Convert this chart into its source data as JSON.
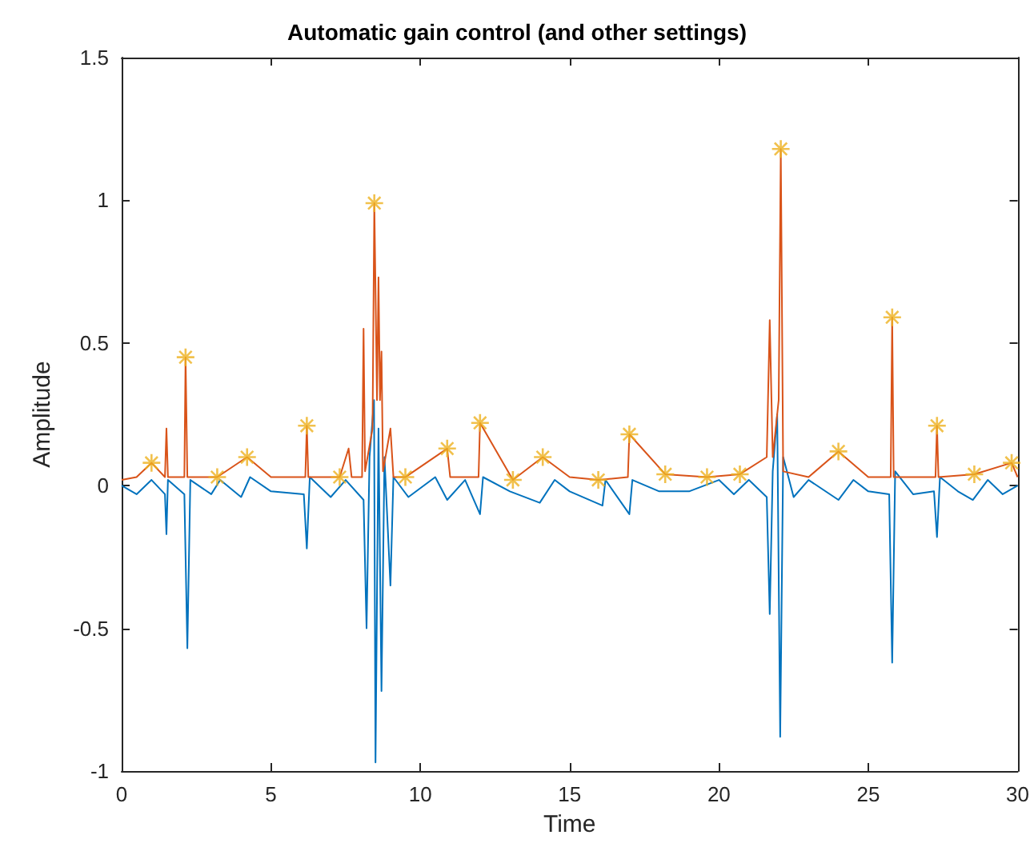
{
  "chart_data": {
    "type": "line",
    "title": "Automatic gain control (and other settings)",
    "xlabel": "Time",
    "ylabel": "Amplitude",
    "xlim": [
      0,
      30
    ],
    "xticks": [
      0,
      5,
      10,
      15,
      20,
      25,
      30
    ],
    "ylim": [
      -1,
      1.5
    ],
    "yticks": [
      -1,
      -0.5,
      0,
      0.5,
      1,
      1.5
    ],
    "grid": false,
    "series": [
      {
        "color": "#0072bd",
        "x": [
          0,
          0.5,
          1.0,
          1.45,
          1.5,
          1.55,
          2.1,
          2.2,
          2.3,
          3.0,
          3.3,
          4.0,
          4.3,
          5.0,
          6.1,
          6.2,
          6.3,
          7.0,
          7.5,
          8.1,
          8.2,
          8.3,
          8.45,
          8.5,
          8.6,
          8.7,
          8.8,
          9.0,
          9.1,
          9.6,
          10.5,
          10.9,
          11.5,
          12.0,
          12.1,
          13.0,
          14.0,
          14.5,
          15.0,
          16.1,
          16.2,
          17.0,
          17.1,
          18.0,
          19.0,
          20.0,
          20.5,
          21.0,
          21.6,
          21.7,
          21.8,
          21.95,
          22.05,
          22.15,
          22.5,
          23.0,
          24.0,
          24.5,
          25.0,
          25.7,
          25.8,
          25.9,
          26.5,
          27.2,
          27.3,
          27.4,
          28.0,
          28.5,
          29.0,
          29.5,
          30
        ],
        "values": [
          0,
          -0.03,
          0.02,
          -0.03,
          -0.17,
          0.02,
          -0.03,
          -0.57,
          0.02,
          -0.03,
          0.02,
          -0.04,
          0.03,
          -0.02,
          -0.03,
          -0.22,
          0.03,
          -0.04,
          0.02,
          -0.05,
          -0.5,
          0.1,
          0.3,
          -0.97,
          0.2,
          -0.72,
          0.1,
          -0.35,
          0.03,
          -0.04,
          0.03,
          -0.05,
          0.02,
          -0.1,
          0.03,
          -0.02,
          -0.06,
          0.02,
          -0.02,
          -0.07,
          0.02,
          -0.1,
          0.02,
          -0.02,
          -0.02,
          0.02,
          -0.03,
          0.02,
          -0.04,
          -0.45,
          0.05,
          0.25,
          -0.88,
          0.1,
          -0.04,
          0.02,
          -0.05,
          0.02,
          -0.02,
          -0.03,
          -0.62,
          0.05,
          -0.03,
          -0.02,
          -0.18,
          0.03,
          -0.02,
          -0.05,
          0.02,
          -0.03,
          0
        ]
      },
      {
        "color": "#d95319",
        "x": [
          0,
          0.5,
          1.0,
          1.45,
          1.5,
          1.55,
          2.1,
          2.14,
          2.2,
          3.0,
          3.2,
          4.2,
          5.0,
          6.15,
          6.2,
          6.25,
          7.3,
          7.6,
          7.7,
          8.05,
          8.1,
          8.15,
          8.4,
          8.46,
          8.55,
          8.6,
          8.65,
          8.7,
          8.75,
          9.0,
          9.1,
          9.5,
          10.9,
          11.0,
          11.95,
          12.0,
          13.1,
          14.1,
          15.0,
          15.96,
          16.95,
          17.0,
          18.2,
          19.6,
          20.7,
          21.6,
          21.7,
          21.8,
          22.0,
          22.07,
          22.15,
          23.0,
          24.0,
          25.0,
          25.75,
          25.8,
          25.85,
          27.25,
          27.3,
          27.35,
          28.55,
          29.8,
          30
        ],
        "values": [
          0.02,
          0.03,
          0.08,
          0.03,
          0.2,
          0.03,
          0.03,
          0.45,
          0.03,
          0.03,
          0.03,
          0.1,
          0.03,
          0.03,
          0.21,
          0.03,
          0.03,
          0.13,
          0.03,
          0.03,
          0.55,
          0.05,
          0.2,
          0.99,
          0.3,
          0.73,
          0.3,
          0.47,
          0.05,
          0.2,
          0.03,
          0.03,
          0.13,
          0.03,
          0.03,
          0.22,
          0.02,
          0.1,
          0.03,
          0.02,
          0.03,
          0.18,
          0.04,
          0.03,
          0.04,
          0.1,
          0.58,
          0.1,
          0.3,
          1.18,
          0.05,
          0.03,
          0.12,
          0.03,
          0.03,
          0.59,
          0.03,
          0.03,
          0.21,
          0.03,
          0.04,
          0.08,
          0.03
        ]
      },
      {
        "type": "scatter",
        "marker": "cross",
        "color": "#edb120",
        "x": [
          1.0,
          2.14,
          3.2,
          4.2,
          6.2,
          7.3,
          8.46,
          9.5,
          10.9,
          12.0,
          13.1,
          14.1,
          15.96,
          17.0,
          18.2,
          19.6,
          20.7,
          22.07,
          24.0,
          25.8,
          27.3,
          28.55,
          29.8
        ],
        "values": [
          0.08,
          0.45,
          0.03,
          0.1,
          0.21,
          0.03,
          0.99,
          0.03,
          0.13,
          0.22,
          0.02,
          0.1,
          0.02,
          0.18,
          0.04,
          0.03,
          0.04,
          1.18,
          0.12,
          0.59,
          0.21,
          0.04,
          0.08
        ]
      }
    ]
  }
}
